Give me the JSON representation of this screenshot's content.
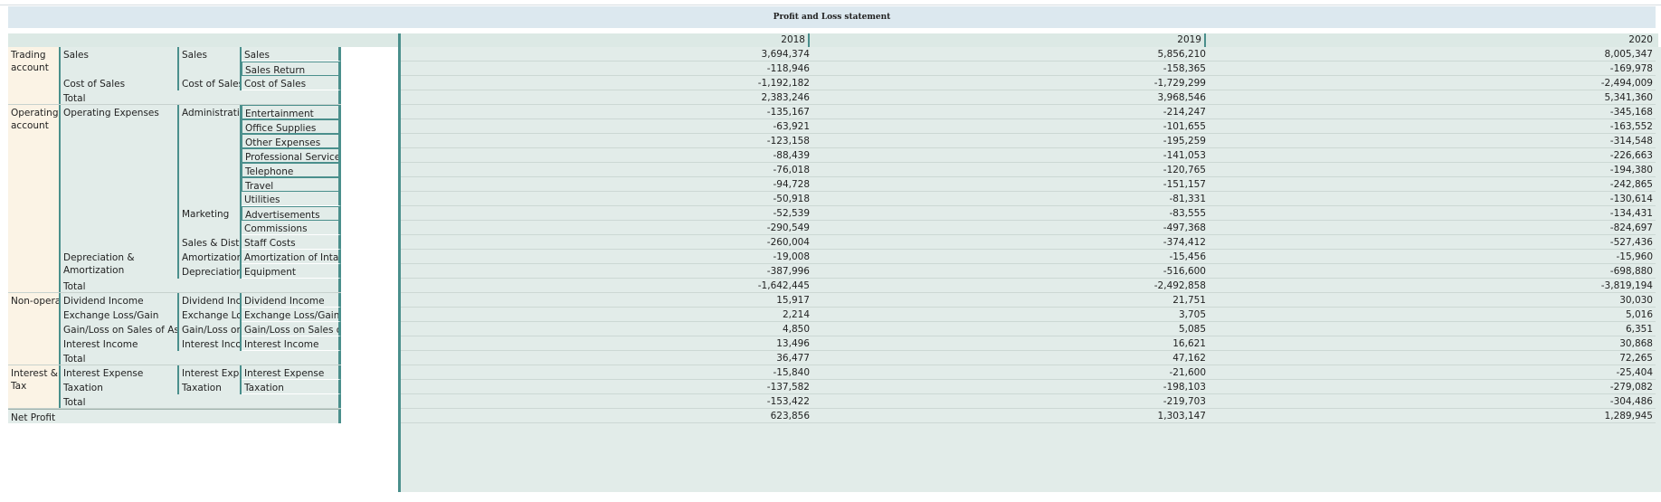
{
  "title": "Profit and Loss statement",
  "years": [
    "2018",
    "2019",
    "2020"
  ],
  "accounts": {
    "trading": "Trading account",
    "operating": "Operating account",
    "non_operating": "Non-opera..",
    "interest_tax": "Interest & Tax",
    "net_profit": "Net Profit"
  },
  "level2": {
    "sales": "Sales",
    "cost_of_sales": "Cost of Sales",
    "operating_expenses": "Operating Expenses",
    "dep_amort": "Depreciation & Amortization",
    "dividend_income": "Dividend Income",
    "exchange": "Exchange Loss/Gain",
    "gain_loss": "Gain/Loss on Sales of Asset",
    "interest_income": "Interest Income",
    "interest_expense": "Interest Expense",
    "taxation": "Taxation",
    "total": "Total"
  },
  "level3": {
    "sales": "Sales",
    "cost_of_sales": "Cost of Sales",
    "administration": "Administrati..",
    "marketing": "Marketing",
    "sales_distr": "Sales & Distr..",
    "amortization": "Amortization",
    "depreciation": "Depreciation",
    "dividend_inc": "Dividend Inc..",
    "exchange_lo": "Exchange Lo..",
    "gain_loss_on": "Gain/Loss on ..",
    "interest_inco": "Interest Inco..",
    "interest_exp": "Interest Exp..",
    "taxation": "Taxation"
  },
  "rows": [
    {
      "label": "Sales",
      "values": [
        "3,694,374",
        "5,856,210",
        "8,005,347"
      ]
    },
    {
      "label": "Sales Return",
      "values": [
        "-118,946",
        "-158,365",
        "-169,978"
      ]
    },
    {
      "label": "Cost of Sales",
      "values": [
        "-1,192,182",
        "-1,729,299",
        "-2,494,009"
      ]
    },
    {
      "label": "Total",
      "values": [
        "2,383,246",
        "3,968,546",
        "5,341,360"
      ]
    },
    {
      "label": "Entertainment",
      "values": [
        "-135,167",
        "-214,247",
        "-345,168"
      ]
    },
    {
      "label": "Office Supplies",
      "values": [
        "-63,921",
        "-101,655",
        "-163,552"
      ]
    },
    {
      "label": "Other Expenses",
      "values": [
        "-123,158",
        "-195,259",
        "-314,548"
      ]
    },
    {
      "label": "Professional Services",
      "values": [
        "-88,439",
        "-141,053",
        "-226,663"
      ]
    },
    {
      "label": "Telephone",
      "values": [
        "-76,018",
        "-120,765",
        "-194,380"
      ]
    },
    {
      "label": "Travel",
      "values": [
        "-94,728",
        "-151,157",
        "-242,865"
      ]
    },
    {
      "label": "Utilities",
      "values": [
        "-50,918",
        "-81,331",
        "-130,614"
      ]
    },
    {
      "label": "Advertisements",
      "values": [
        "-52,539",
        "-83,555",
        "-134,431"
      ]
    },
    {
      "label": "Commissions",
      "values": [
        "-290,549",
        "-497,368",
        "-824,697"
      ]
    },
    {
      "label": "Staff Costs",
      "values": [
        "-260,004",
        "-374,412",
        "-527,436"
      ]
    },
    {
      "label": "Amortization of Intan..",
      "values": [
        "-19,008",
        "-15,456",
        "-15,960"
      ]
    },
    {
      "label": "Equipment",
      "values": [
        "-387,996",
        "-516,600",
        "-698,880"
      ]
    },
    {
      "label": "Total",
      "values": [
        "-1,642,445",
        "-2,492,858",
        "-3,819,194"
      ]
    },
    {
      "label": "Dividend Income",
      "values": [
        "15,917",
        "21,751",
        "30,030"
      ]
    },
    {
      "label": "Exchange Loss/Gain",
      "values": [
        "2,214",
        "3,705",
        "5,016"
      ]
    },
    {
      "label": "Gain/Loss on Sales of ..",
      "values": [
        "4,850",
        "5,085",
        "6,351"
      ]
    },
    {
      "label": "Interest Income",
      "values": [
        "13,496",
        "16,621",
        "30,868"
      ]
    },
    {
      "label": "Total",
      "values": [
        "36,477",
        "47,162",
        "72,265"
      ]
    },
    {
      "label": "Interest Expense",
      "values": [
        "-15,840",
        "-21,600",
        "-25,404"
      ]
    },
    {
      "label": "Taxation",
      "values": [
        "-137,582",
        "-198,103",
        "-279,082"
      ]
    },
    {
      "label": "Total",
      "values": [
        "-153,422",
        "-219,703",
        "-304,486"
      ]
    },
    {
      "label": "Net Profit",
      "values": [
        "623,856",
        "1,303,147",
        "1,289,945"
      ]
    }
  ]
}
